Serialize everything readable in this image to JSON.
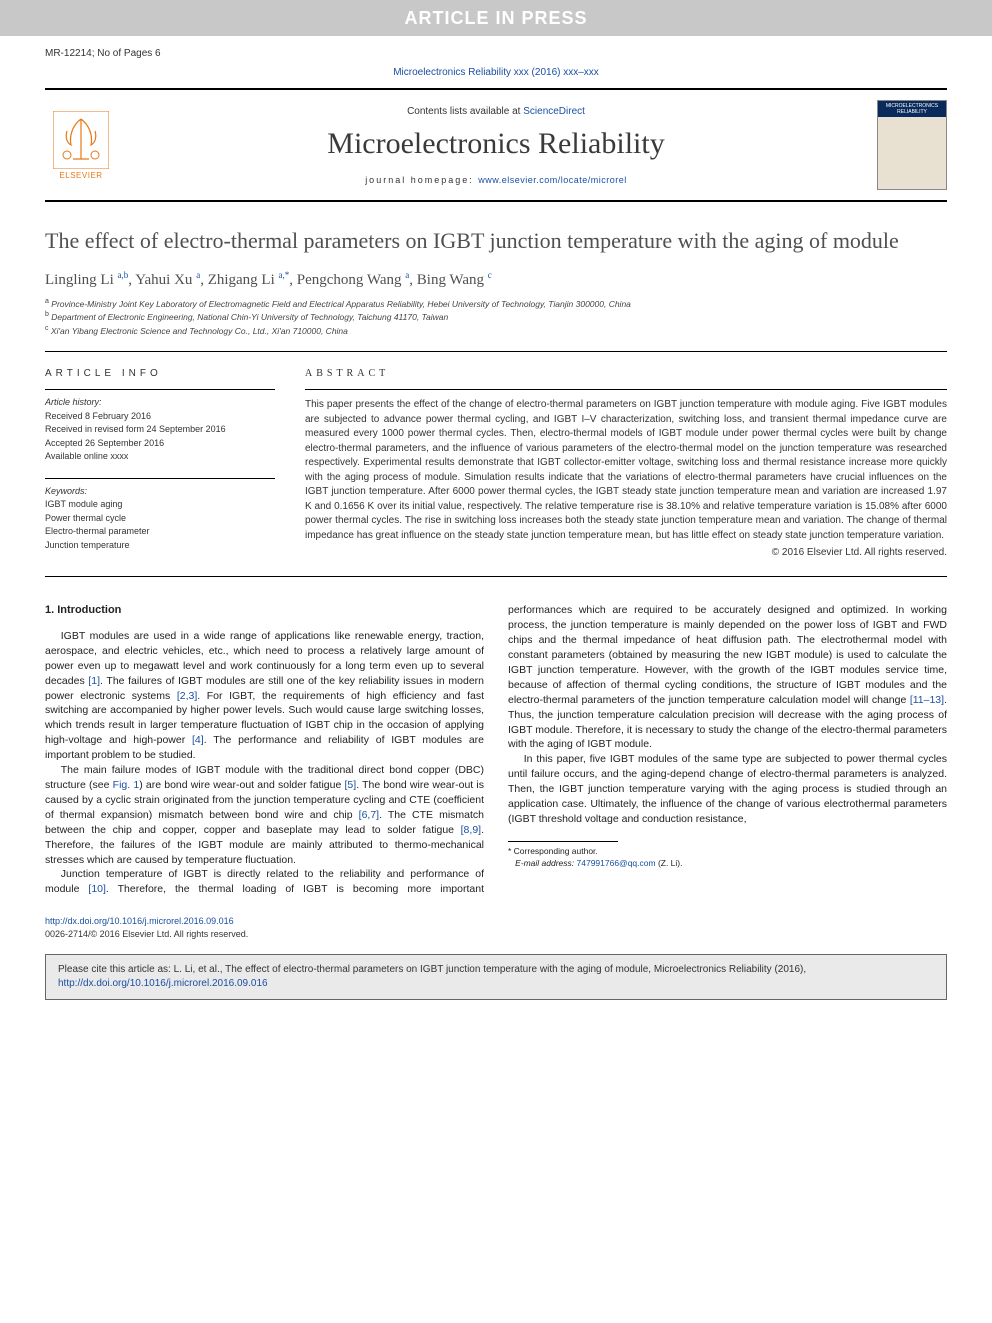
{
  "banner": {
    "text": "ARTICLE IN PRESS"
  },
  "ref_line": "MR-12214; No of Pages 6",
  "top_citation_link": "Microelectronics Reliability xxx (2016) xxx–xxx",
  "masthead": {
    "contents_prefix": "Contents lists available at ",
    "contents_link": "ScienceDirect",
    "journal_name": "Microelectronics Reliability",
    "homepage_label": "journal homepage: ",
    "homepage_url": "www.elsevier.com/locate/microrel",
    "logo_text": "ELSEVIER",
    "cover_title": "MICROELECTRONICS RELIABILITY"
  },
  "article": {
    "title": "The effect of electro-thermal parameters on IGBT junction temperature with the aging of module",
    "authors_html": "Lingling Li <sup>a,b</sup>, Yahui Xu <sup>a</sup>, Zhigang Li <sup>a,*</sup>, Pengchong Wang <sup>a</sup>, Bing Wang <sup>c</sup>",
    "affiliations": [
      "a  Province-Ministry Joint Key Laboratory of Electromagnetic Field and Electrical Apparatus Reliability, Hebei University of Technology, Tianjin 300000, China",
      "b  Department of Electronic Engineering, National Chin-Yi University of Technology, Taichung 41170, Taiwan",
      "c  Xi'an Yibang Electronic Science and Technology Co., Ltd., Xi'an 710000, China"
    ]
  },
  "info": {
    "label": "article info",
    "history_label": "Article history:",
    "history": [
      "Received 8 February 2016",
      "Received in revised form 24 September 2016",
      "Accepted 26 September 2016",
      "Available online xxxx"
    ],
    "keywords_label": "Keywords:",
    "keywords": [
      "IGBT module aging",
      "Power thermal cycle",
      "Electro-thermal parameter",
      "Junction temperature"
    ]
  },
  "abstract": {
    "label": "abstract",
    "text": "This paper presents the effect of the change of electro-thermal parameters on IGBT junction temperature with module aging. Five IGBT modules are subjected to advance power thermal cycling, and IGBT I–V characterization, switching loss, and transient thermal impedance curve are measured every 1000 power thermal cycles. Then, electro-thermal models of IGBT module under power thermal cycles were built by change electro-thermal parameters, and the influence of various parameters of the electro-thermal model on the junction temperature was researched respectively. Experimental results demonstrate that IGBT collector-emitter voltage, switching loss and thermal resistance increase more quickly with the aging process of module. Simulation results indicate that the variations of electro-thermal parameters have crucial influences on the IGBT junction temperature. After 6000 power thermal cycles, the IGBT steady state junction temperature mean and variation are increased 1.97 K and 0.1656 K over its initial value, respectively. The relative temperature rise is 38.10% and relative temperature variation is 15.08% after 6000 power thermal cycles. The rise in switching loss increases both the steady state junction temperature mean and variation. The change of thermal impedance has great influence on the steady state junction temperature mean, but has little effect on steady state junction temperature variation.",
    "copyright": "© 2016 Elsevier Ltd. All rights reserved."
  },
  "body": {
    "intro_heading": "1. Introduction",
    "p1a": "IGBT modules are used in a wide range of applications like renewable energy, traction, aerospace, and electric vehicles, etc., which need to process a relatively large amount of power even up to megawatt level and work continuously for a long term even up to several decades ",
    "ref1": "[1]",
    "p1b": ". The failures of IGBT modules are still one of the key reliability issues in modern power electronic systems ",
    "ref2": "[2,3]",
    "p1c": ". For IGBT, the requirements of high efficiency and fast switching are accompanied by higher power levels. Such would cause large switching losses, which trends result in larger temperature fluctuation of IGBT chip in the occasion of applying high-voltage and high-power ",
    "ref3": "[4]",
    "p1d": ". The performance and reliability of IGBT modules are important problem to be studied.",
    "p2a": "The main failure modes of IGBT module with the traditional direct bond copper (DBC) structure (see ",
    "fig1": "Fig. 1",
    "p2b": ") are bond wire wear-out and solder fatigue ",
    "ref4": "[5]",
    "p2c": ". The bond wire wear-out is caused by a cyclic strain originated from the junction temperature cycling and CTE (coefficient of thermal expansion) mismatch between bond wire and chip ",
    "ref5": "[6,7]",
    "p2d": ". The CTE mismatch between the chip and copper, copper and baseplate may lead to solder fatigue ",
    "ref6": "[8,9]",
    "p2e": ". Therefore, the failures of the IGBT module are mainly attributed to thermo-mechanical stresses which are caused by temperature fluctuation.",
    "p3a": "Junction temperature of IGBT is directly related to the reliability and performance of module ",
    "ref7": "[10]",
    "p3b": ". Therefore, the thermal loading of IGBT is becoming more important performances which are required to be accurately designed and optimized. In working process, the junction temperature is mainly depended on the power loss of IGBT and FWD chips and the thermal impedance of heat diffusion path. The electrothermal model with constant parameters (obtained by measuring the new IGBT module) is used to calculate the IGBT junction temperature. However, with the growth of the IGBT modules service time, because of affection of thermal cycling conditions, the structure of IGBT modules and the electro-thermal parameters of the junction temperature calculation model will change ",
    "ref8": "[11–13]",
    "p3c": ". Thus, the junction temperature calculation precision will decrease with the aging process of IGBT module. Therefore, it is necessary to study the change of the electro-thermal parameters with the aging of IGBT module.",
    "p4": "In this paper, five IGBT modules of the same type are subjected to power thermal cycles until failure occurs, and the aging-depend change of electro-thermal parameters is analyzed. Then, the IGBT junction temperature varying with the aging process is studied through an application case. Ultimately, the influence of the change of various electrothermal parameters (IGBT threshold voltage and conduction resistance,"
  },
  "footnote": {
    "corr_label": "* Corresponding author.",
    "email_label": "E-mail address: ",
    "email": "747991766@qq.com",
    "email_suffix": " (Z. Li)."
  },
  "doi": {
    "url": "http://dx.doi.org/10.1016/j.microrel.2016.09.016",
    "line2": "0026-2714/© 2016 Elsevier Ltd. All rights reserved."
  },
  "cite_box": {
    "prefix": "Please cite this article as: L. Li, et al., The effect of electro-thermal parameters on IGBT junction temperature with the aging of module, Microelectronics Reliability (2016), ",
    "url": "http://dx.doi.org/10.1016/j.microrel.2016.09.016"
  },
  "colors": {
    "link": "#1a4fa3",
    "banner_bg": "#c8c8c8",
    "citebox_bg": "#eaeaea",
    "elsevier_orange": "#e67817"
  }
}
